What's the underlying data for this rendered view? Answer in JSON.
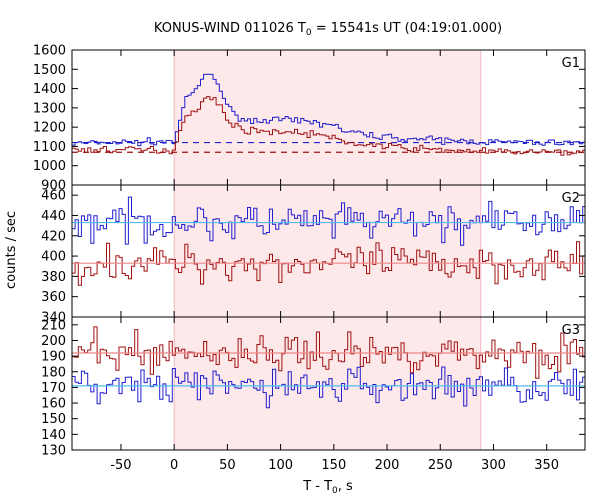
{
  "title": "KONUS-WIND 011026 T",
  "title_sub": "0",
  "title_rest": " = 15541s UT (04:19:01.000)",
  "ylabel": "counts / sec",
  "xlabel_main": "T - T",
  "xlabel_sub": "0",
  "xlabel_rest": ", s",
  "colors": {
    "blue": "#1f1fcc",
    "red": "#a01010",
    "cyan": "#55bbee",
    "pink": "#ee8888",
    "shade": "#fde8ea"
  },
  "chart_data": {
    "type": "line",
    "shaded_interval": [
      0,
      288
    ],
    "xlim": [
      -96,
      386
    ],
    "xticks": [
      -50,
      0,
      50,
      100,
      150,
      200,
      250,
      300,
      350
    ],
    "panels": [
      {
        "label": "G1",
        "ylim": [
          900,
          1600
        ],
        "yticks": [
          900,
          1000,
          1100,
          1200,
          1300,
          1400,
          1500,
          1600
        ],
        "series": [
          {
            "color": "blue",
            "background_level": 1120,
            "points": [
              [
                -95,
                1115
              ],
              [
                -60,
                1120
              ],
              [
                0,
                1125
              ],
              [
                3,
                1180
              ],
              [
                8,
                1300
              ],
              [
                15,
                1370
              ],
              [
                22,
                1400
              ],
              [
                28,
                1460
              ],
              [
                33,
                1480
              ],
              [
                38,
                1450
              ],
              [
                45,
                1380
              ],
              [
                52,
                1290
              ],
              [
                60,
                1260
              ],
              [
                70,
                1230
              ],
              [
                90,
                1240
              ],
              [
                120,
                1230
              ],
              [
                140,
                1220
              ],
              [
                150,
                1210
              ],
              [
                160,
                1180
              ],
              [
                180,
                1160
              ],
              [
                200,
                1150
              ],
              [
                220,
                1140
              ],
              [
                260,
                1130
              ],
              [
                288,
                1125
              ],
              [
                330,
                1120
              ],
              [
                386,
                1120
              ]
            ]
          },
          {
            "color": "red",
            "background_level": 1070,
            "points": [
              [
                -95,
                1080
              ],
              [
                -60,
                1085
              ],
              [
                0,
                1080
              ],
              [
                3,
                1130
              ],
              [
                8,
                1240
              ],
              [
                15,
                1270
              ],
              [
                22,
                1300
              ],
              [
                28,
                1340
              ],
              [
                33,
                1360
              ],
              [
                38,
                1340
              ],
              [
                45,
                1290
              ],
              [
                52,
                1230
              ],
              [
                60,
                1200
              ],
              [
                70,
                1180
              ],
              [
                90,
                1180
              ],
              [
                120,
                1170
              ],
              [
                140,
                1160
              ],
              [
                150,
                1140
              ],
              [
                160,
                1120
              ],
              [
                180,
                1110
              ],
              [
                200,
                1100
              ],
              [
                220,
                1090
              ],
              [
                260,
                1080
              ],
              [
                288,
                1075
              ],
              [
                330,
                1070
              ],
              [
                386,
                1070
              ]
            ]
          }
        ]
      },
      {
        "label": "G2",
        "ylim": [
          340,
          470
        ],
        "yticks": [
          340,
          360,
          380,
          400,
          420,
          440,
          460
        ],
        "series": [
          {
            "color": "blue",
            "background_level": 433,
            "points": [
              [
                -95,
                433
              ],
              [
                386,
                433
              ]
            ]
          },
          {
            "color": "red",
            "background_level": 393,
            "points": [
              [
                -95,
                393
              ],
              [
                386,
                393
              ]
            ]
          }
        ]
      },
      {
        "label": "G3",
        "ylim": [
          130,
          215
        ],
        "yticks": [
          130,
          140,
          150,
          160,
          170,
          180,
          190,
          200,
          210
        ],
        "series": [
          {
            "color": "red",
            "background_level": 192,
            "points": [
              [
                -95,
                192
              ],
              [
                386,
                192
              ]
            ]
          },
          {
            "color": "blue",
            "background_level": 171,
            "points": [
              [
                -95,
                171
              ],
              [
                386,
                171
              ]
            ]
          }
        ]
      }
    ]
  }
}
